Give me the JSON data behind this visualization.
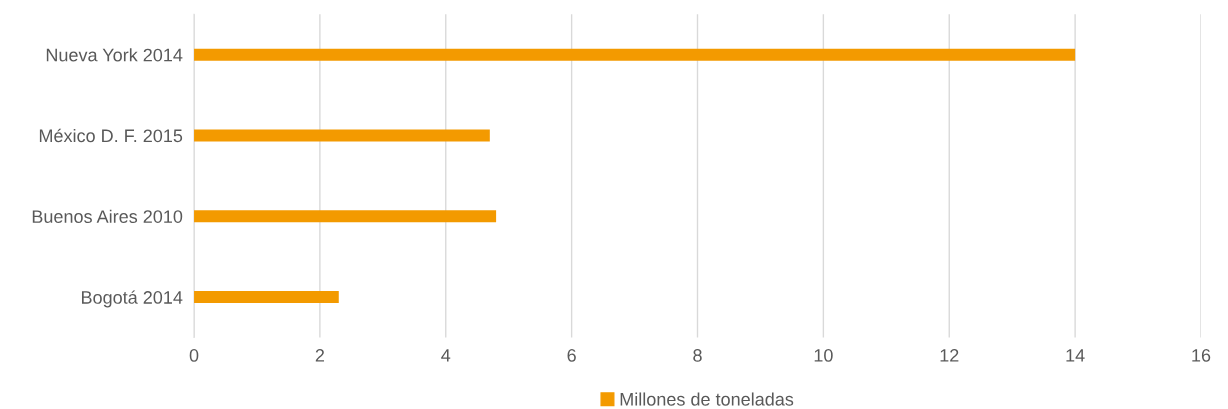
{
  "chart_data": {
    "type": "bar",
    "orientation": "horizontal",
    "categories": [
      "Nueva York 2014",
      "México D. F. 2015",
      "Buenos Aires 2010",
      "Bogotá 2014"
    ],
    "series": [
      {
        "name": "Millones de toneladas",
        "color": "#f39a00",
        "values": [
          14,
          4.7,
          4.8,
          2.3
        ]
      }
    ],
    "xlim": [
      0,
      16
    ],
    "xticks": [
      0,
      2,
      4,
      6,
      8,
      10,
      12,
      14,
      16
    ],
    "grid": "x",
    "legend": "bottom"
  }
}
